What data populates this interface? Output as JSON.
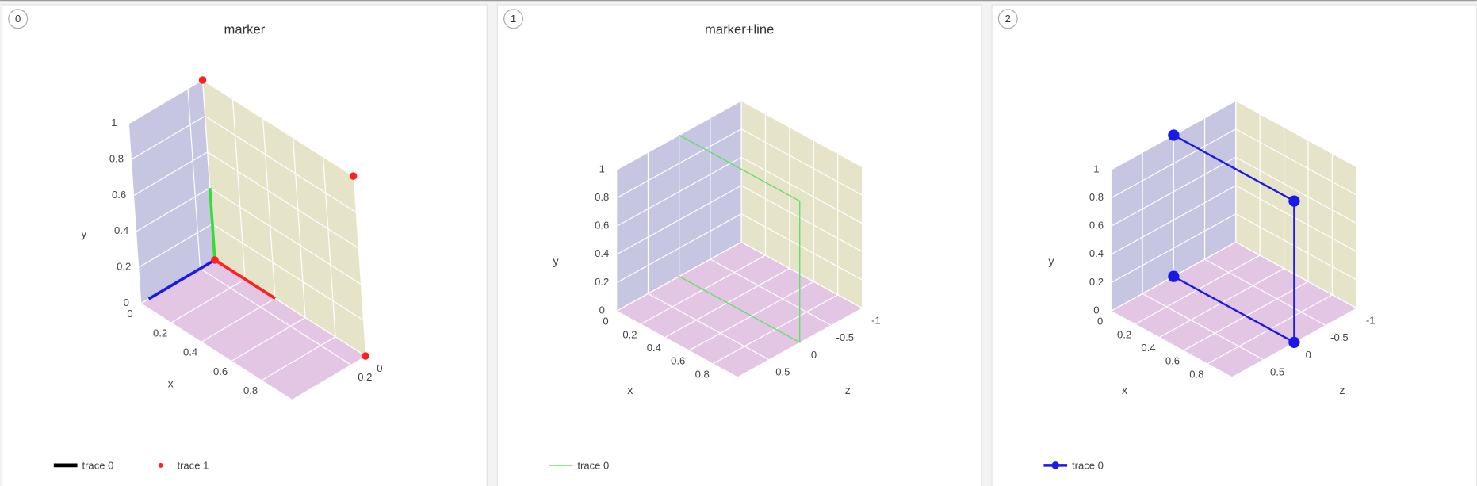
{
  "chart_data": [
    {
      "type": "scatter3d",
      "index_label": "0",
      "title": "marker",
      "xaxis": {
        "title": "x",
        "range": [
          0,
          1
        ],
        "ticks": [
          0,
          0.2,
          0.4,
          0.6,
          0.8
        ]
      },
      "yaxis": {
        "title": "y",
        "range": [
          0,
          1
        ],
        "ticks": [
          0,
          0.2,
          0.4,
          0.6,
          0.8,
          1
        ]
      },
      "zaxis": {
        "range": [
          0,
          1
        ],
        "ticks": [
          0,
          0.2
        ]
      },
      "series": [
        {
          "name": "trace 0",
          "mode": "lines",
          "color": "#000000",
          "segment_colors": [
            "#1a1ae6",
            "#ff2020",
            "#ff2020",
            "#33dd33"
          ],
          "x": [
            0,
            0,
            0.4,
            0,
            0
          ],
          "y": [
            0,
            0,
            0,
            0,
            0.4
          ],
          "z": [
            0.9,
            0,
            0,
            0,
            0
          ]
        },
        {
          "name": "trace 1",
          "mode": "markers",
          "color": "#ff2020",
          "x": [
            0,
            1,
            1,
            0
          ],
          "y": [
            1,
            1,
            0,
            0
          ],
          "z": [
            0,
            0,
            0,
            0
          ]
        }
      ]
    },
    {
      "type": "scatter3d",
      "index_label": "1",
      "title": "marker+line",
      "xaxis": {
        "title": "x",
        "range": [
          0,
          1
        ],
        "ticks": [
          0,
          0.2,
          0.4,
          0.6,
          0.8
        ]
      },
      "yaxis": {
        "title": "y",
        "range": [
          0,
          1
        ],
        "ticks": [
          0,
          0.2,
          0.4,
          0.6,
          0.8,
          1
        ]
      },
      "zaxis": {
        "title": "z",
        "range": [
          -1,
          1
        ],
        "ticks": [
          -1,
          -0.5,
          0,
          0.5
        ]
      },
      "series": [
        {
          "name": "trace 0",
          "mode": "lines",
          "color": "#66dd66",
          "x": [
            0,
            1,
            1,
            0
          ],
          "y": [
            1,
            1,
            0,
            0
          ],
          "z": [
            0,
            0,
            0,
            0
          ]
        }
      ]
    },
    {
      "type": "scatter3d",
      "index_label": "2",
      "xaxis": {
        "title": "x",
        "range": [
          0,
          1
        ],
        "ticks": [
          0,
          0.2,
          0.4,
          0.6,
          0.8
        ]
      },
      "yaxis": {
        "title": "y",
        "range": [
          0,
          1
        ],
        "ticks": [
          0,
          0.2,
          0.4,
          0.6,
          0.8,
          1
        ]
      },
      "zaxis": {
        "title": "z",
        "range": [
          -1,
          1
        ],
        "ticks": [
          -1,
          -0.5,
          0,
          0.5
        ]
      },
      "series": [
        {
          "name": "trace 0",
          "mode": "lines+markers",
          "color": "#1a1ae6",
          "x": [
            0,
            1,
            1,
            0
          ],
          "y": [
            1,
            1,
            0,
            0
          ],
          "z": [
            0,
            0,
            0,
            0
          ]
        }
      ]
    }
  ]
}
